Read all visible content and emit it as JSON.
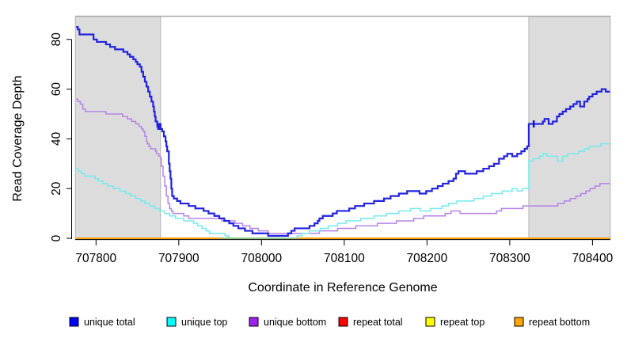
{
  "axes": {
    "x_title": "Coordinate in Reference Genome",
    "y_title": "Read Coverage Depth"
  },
  "legend": {
    "items": [
      {
        "label": "unique total",
        "color": "#0000FF"
      },
      {
        "label": "unique top",
        "color": "#00FFFF"
      },
      {
        "label": "unique bottom",
        "color": "#A020F0"
      },
      {
        "label": "repeat total",
        "color": "#FF0000"
      },
      {
        "label": "repeat top",
        "color": "#FFFF00"
      },
      {
        "label": "repeat bottom",
        "color": "#FFA500"
      }
    ]
  },
  "chart_data": {
    "type": "line",
    "subtype": "step-after",
    "title": "",
    "xlabel": "Coordinate in Reference Genome",
    "ylabel": "Read Coverage Depth",
    "x_ticks": [
      707800,
      707900,
      708000,
      708100,
      708200,
      708300,
      708400
    ],
    "y_ticks": [
      0,
      20,
      40,
      60,
      80
    ],
    "xlim": [
      707775,
      708423
    ],
    "ylim": [
      0,
      85
    ],
    "grid": false,
    "legend_position": "bottom",
    "shaded_regions": [
      {
        "x0": 707775,
        "x1": 707878,
        "fill": "#DCDCDC",
        "stroke": "#A8A8A8"
      },
      {
        "x0": 708323,
        "x1": 708423,
        "fill": "#DCDCDC",
        "stroke": "#A8A8A8"
      }
    ],
    "top_boundary_line": {
      "y_px_value": "top-of-plot",
      "color": "#A8A8A8"
    },
    "baseline_blend_segment": {
      "x0": 707950,
      "x1": 708044,
      "value": 0,
      "color": "#86C786",
      "note": "cyan-at-zero overlapping orange renders as green"
    },
    "marker": {
      "series": "unique total",
      "x": 708329,
      "y": 46,
      "shape": "vertical-dash",
      "color": "#1515CC"
    },
    "series": [
      {
        "name": "repeat total",
        "line_color": "#FF0000",
        "width": 1.5,
        "points": [
          [
            707776,
            0
          ],
          [
            708421,
            0
          ]
        ]
      },
      {
        "name": "repeat top",
        "line_color": "#FFFF00",
        "width": 1.5,
        "points": [
          [
            707776,
            0
          ],
          [
            708421,
            0
          ]
        ]
      },
      {
        "name": "repeat bottom",
        "line_color": "#FF9D0A",
        "width": 1.9,
        "points": [
          [
            707776,
            0
          ],
          [
            708421,
            0
          ]
        ]
      },
      {
        "name": "unique bottom",
        "line_color": "#B583E6",
        "width": 1.5,
        "points": [
          [
            707776,
            56
          ],
          [
            707778,
            55
          ],
          [
            707781,
            54
          ],
          [
            707784,
            52
          ],
          [
            707787,
            51
          ],
          [
            707812,
            50
          ],
          [
            707832,
            49
          ],
          [
            707838,
            48
          ],
          [
            707843,
            47
          ],
          [
            707848,
            46
          ],
          [
            707852,
            45
          ],
          [
            707855,
            44
          ],
          [
            707857,
            43
          ],
          [
            707859,
            41
          ],
          [
            707861,
            39
          ],
          [
            707862,
            38
          ],
          [
            707864,
            37
          ],
          [
            707866,
            36
          ],
          [
            707872,
            35
          ],
          [
            707873,
            34
          ],
          [
            707876,
            33
          ],
          [
            707878,
            32
          ],
          [
            707879,
            29
          ],
          [
            707881,
            25
          ],
          [
            707883,
            21
          ],
          [
            707885,
            17
          ],
          [
            707887,
            14
          ],
          [
            707889,
            12
          ],
          [
            707891,
            11
          ],
          [
            707893,
            10
          ],
          [
            707906,
            9
          ],
          [
            707912,
            8
          ],
          [
            707952,
            7
          ],
          [
            707968,
            6
          ],
          [
            707977,
            5
          ],
          [
            707986,
            4
          ],
          [
            707996,
            3
          ],
          [
            708008,
            2
          ],
          [
            708070,
            3
          ],
          [
            708092,
            4
          ],
          [
            708114,
            5
          ],
          [
            708140,
            6
          ],
          [
            708163,
            7
          ],
          [
            708184,
            8
          ],
          [
            708196,
            9
          ],
          [
            708222,
            10
          ],
          [
            708229,
            11
          ],
          [
            708240,
            10
          ],
          [
            708284,
            11
          ],
          [
            708290,
            12
          ],
          [
            708316,
            13
          ],
          [
            708358,
            14
          ],
          [
            708366,
            15
          ],
          [
            708373,
            16
          ],
          [
            708380,
            17
          ],
          [
            708386,
            18
          ],
          [
            708392,
            19
          ],
          [
            708397,
            20
          ],
          [
            708403,
            21
          ],
          [
            708409,
            22
          ],
          [
            708421,
            22
          ]
        ]
      },
      {
        "name": "unique top",
        "line_color": "#74EAEE",
        "width": 1.5,
        "points": [
          [
            707776,
            28
          ],
          [
            707779,
            27
          ],
          [
            707782,
            26
          ],
          [
            707786,
            25
          ],
          [
            707799,
            24
          ],
          [
            707803,
            23
          ],
          [
            707808,
            22
          ],
          [
            707814,
            21
          ],
          [
            707821,
            20
          ],
          [
            707829,
            19
          ],
          [
            707836,
            18
          ],
          [
            707842,
            17
          ],
          [
            707848,
            16
          ],
          [
            707854,
            15
          ],
          [
            707859,
            14
          ],
          [
            707865,
            13
          ],
          [
            707871,
            12
          ],
          [
            707877,
            11
          ],
          [
            707883,
            10
          ],
          [
            707889,
            9
          ],
          [
            707896,
            8
          ],
          [
            707906,
            7
          ],
          [
            707918,
            6
          ],
          [
            707923,
            5
          ],
          [
            707928,
            4
          ],
          [
            707933,
            3
          ],
          [
            707937,
            2
          ],
          [
            707956,
            1
          ],
          [
            707960,
            0
          ],
          [
            708043,
            1
          ],
          [
            708049,
            2
          ],
          [
            708058,
            3
          ],
          [
            708071,
            4
          ],
          [
            708081,
            5
          ],
          [
            708092,
            6
          ],
          [
            708102,
            7
          ],
          [
            708120,
            8
          ],
          [
            708136,
            9
          ],
          [
            708151,
            10
          ],
          [
            708166,
            11
          ],
          [
            708180,
            12
          ],
          [
            708192,
            11
          ],
          [
            708204,
            12
          ],
          [
            708218,
            13
          ],
          [
            708226,
            14
          ],
          [
            708236,
            15
          ],
          [
            708257,
            16
          ],
          [
            708268,
            17
          ],
          [
            708278,
            18
          ],
          [
            708291,
            19
          ],
          [
            708303,
            20
          ],
          [
            708309,
            19
          ],
          [
            708315,
            20
          ],
          [
            708323,
            31
          ],
          [
            708328,
            32
          ],
          [
            708336,
            33
          ],
          [
            708340,
            34
          ],
          [
            708345,
            33
          ],
          [
            708358,
            31
          ],
          [
            708364,
            33
          ],
          [
            708370,
            34
          ],
          [
            708383,
            35
          ],
          [
            708390,
            36
          ],
          [
            708396,
            37
          ],
          [
            708410,
            38
          ],
          [
            708421,
            38
          ]
        ]
      },
      {
        "name": "unique total",
        "line_color": "#2222DE",
        "width": 2.2,
        "points": [
          [
            707776,
            85
          ],
          [
            707778,
            84
          ],
          [
            707780,
            82
          ],
          [
            707797,
            80
          ],
          [
            707801,
            79
          ],
          [
            707812,
            78
          ],
          [
            707817,
            77
          ],
          [
            707823,
            76
          ],
          [
            707833,
            75
          ],
          [
            707838,
            74
          ],
          [
            707841,
            73
          ],
          [
            707845,
            72
          ],
          [
            707848,
            71
          ],
          [
            707850,
            70
          ],
          [
            707853,
            69
          ],
          [
            707855,
            67
          ],
          [
            707857,
            65
          ],
          [
            707859,
            63
          ],
          [
            707861,
            61
          ],
          [
            707863,
            59
          ],
          [
            707865,
            57
          ],
          [
            707867,
            55
          ],
          [
            707869,
            53
          ],
          [
            707870,
            51
          ],
          [
            707871,
            49
          ],
          [
            707872,
            47
          ],
          [
            707874,
            45
          ],
          [
            707875,
            44
          ],
          [
            707876,
            46
          ],
          [
            707878,
            44
          ],
          [
            707880,
            43
          ],
          [
            707882,
            41
          ],
          [
            707884,
            39
          ],
          [
            707885,
            37
          ],
          [
            707886,
            35
          ],
          [
            707888,
            30
          ],
          [
            707889,
            27
          ],
          [
            707890,
            24
          ],
          [
            707891,
            20
          ],
          [
            707892,
            17
          ],
          [
            707894,
            16
          ],
          [
            707898,
            15
          ],
          [
            707902,
            14
          ],
          [
            707912,
            13
          ],
          [
            707920,
            12
          ],
          [
            707930,
            11
          ],
          [
            707936,
            10
          ],
          [
            707943,
            9
          ],
          [
            707949,
            8
          ],
          [
            707955,
            7
          ],
          [
            707961,
            6
          ],
          [
            707966,
            5
          ],
          [
            707972,
            4
          ],
          [
            707980,
            3
          ],
          [
            707989,
            2
          ],
          [
            708008,
            1
          ],
          [
            708032,
            2
          ],
          [
            708036,
            3
          ],
          [
            708040,
            4
          ],
          [
            708058,
            5
          ],
          [
            708064,
            6
          ],
          [
            708068,
            7
          ],
          [
            708070,
            8
          ],
          [
            708074,
            9
          ],
          [
            708086,
            10
          ],
          [
            708091,
            11
          ],
          [
            708106,
            12
          ],
          [
            708113,
            13
          ],
          [
            708124,
            14
          ],
          [
            708136,
            15
          ],
          [
            708148,
            16
          ],
          [
            708156,
            17
          ],
          [
            708166,
            18
          ],
          [
            708176,
            19
          ],
          [
            708191,
            18
          ],
          [
            708199,
            19
          ],
          [
            708206,
            20
          ],
          [
            708213,
            21
          ],
          [
            708219,
            22
          ],
          [
            708226,
            23
          ],
          [
            708232,
            24
          ],
          [
            708235,
            26
          ],
          [
            708238,
            27
          ],
          [
            708246,
            26
          ],
          [
            708260,
            27
          ],
          [
            708268,
            28
          ],
          [
            708275,
            29
          ],
          [
            708281,
            30
          ],
          [
            708287,
            32
          ],
          [
            708293,
            33
          ],
          [
            708297,
            34
          ],
          [
            708303,
            33
          ],
          [
            708309,
            34
          ],
          [
            708314,
            35
          ],
          [
            708318,
            36
          ],
          [
            708321,
            37
          ],
          [
            708323,
            46
          ],
          [
            708340,
            47
          ],
          [
            708342,
            48
          ],
          [
            708347,
            46
          ],
          [
            708352,
            47
          ],
          [
            708357,
            49
          ],
          [
            708360,
            50
          ],
          [
            708364,
            51
          ],
          [
            708368,
            52
          ],
          [
            708373,
            53
          ],
          [
            708377,
            54
          ],
          [
            708381,
            55
          ],
          [
            708385,
            53
          ],
          [
            708390,
            55
          ],
          [
            708394,
            56
          ],
          [
            708396,
            57
          ],
          [
            708400,
            58
          ],
          [
            708405,
            59
          ],
          [
            708411,
            60
          ],
          [
            708416,
            59
          ],
          [
            708421,
            59
          ]
        ]
      }
    ]
  }
}
